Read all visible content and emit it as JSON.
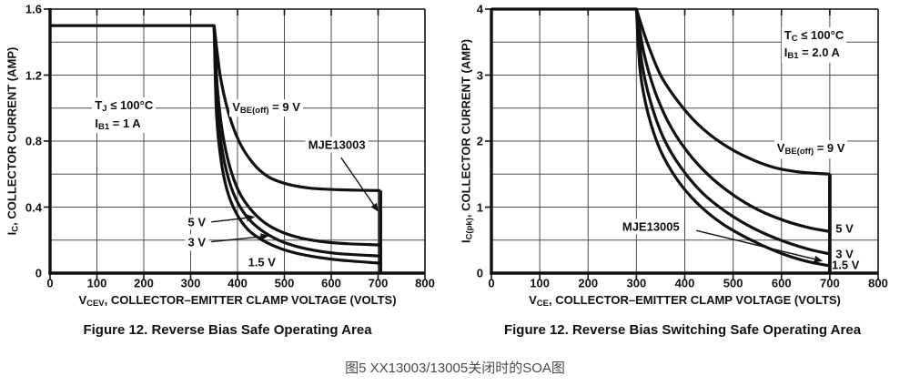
{
  "page": {
    "background": "#ffffff",
    "ink": "#111111",
    "grid": "#4d4d4d",
    "caption_color": "#4a4a4a"
  },
  "caption": "图5 XX13003/13005关闭时的SOA图",
  "chart_data": [
    {
      "type": "line",
      "device": "MJE13003",
      "title": "Figure 12. Reverse Bias Safe Operating Area",
      "xlabel_parts": [
        {
          "t": "V"
        },
        {
          "t": "CEV",
          "sub": true
        },
        {
          "t": ", COLLECTOR–EMITTER CLAMP VOLTAGE (VOLTS)"
        }
      ],
      "ylabel_parts": [
        {
          "t": "I"
        },
        {
          "t": "C",
          "sub": true
        },
        {
          "t": ", COLLECTOR CURRENT (AMP)"
        }
      ],
      "xlim": [
        0,
        800
      ],
      "ylim": [
        0,
        1.6
      ],
      "xticks": [
        0,
        100,
        200,
        300,
        400,
        500,
        600,
        700,
        800
      ],
      "yticks": [
        {
          "v": 0,
          "t": "0"
        },
        {
          "v": 0.4,
          "t": "0.4"
        },
        {
          "v": 0.8,
          "t": "0.8"
        },
        {
          "v": 1.2,
          "t": "1.2"
        },
        {
          "v": 1.6,
          "t": "1.6"
        }
      ],
      "xgrid_step": 100,
      "ygrid_step": 0.2,
      "grid": true,
      "legend": "inline-annotations",
      "series": [
        {
          "name": "VBE(off) = 9 V",
          "corner": 1,
          "points": [
            [
              0,
              1.5
            ],
            [
              350,
              1.5
            ],
            [
              363,
              1.2
            ],
            [
              380,
              0.98
            ],
            [
              403,
              0.8
            ],
            [
              432,
              0.67
            ],
            [
              465,
              0.585
            ],
            [
              505,
              0.54
            ],
            [
              555,
              0.515
            ],
            [
              620,
              0.505
            ],
            [
              705,
              0.5
            ]
          ]
        },
        {
          "name": "VBE(off) = 5 V",
          "corner": 0,
          "points": [
            [
              350,
              1.5
            ],
            [
              357,
              1.12
            ],
            [
              368,
              0.85
            ],
            [
              383,
              0.65
            ],
            [
              402,
              0.5
            ],
            [
              427,
              0.39
            ],
            [
              458,
              0.305
            ],
            [
              498,
              0.245
            ],
            [
              548,
              0.205
            ],
            [
              612,
              0.182
            ],
            [
              705,
              0.17
            ]
          ]
        },
        {
          "name": "VBE(off) = 3 V",
          "corner": 0,
          "points": [
            [
              350,
              1.5
            ],
            [
              356,
              1.05
            ],
            [
              366,
              0.77
            ],
            [
              381,
              0.57
            ],
            [
              400,
              0.43
            ],
            [
              425,
              0.325
            ],
            [
              456,
              0.25
            ],
            [
              496,
              0.19
            ],
            [
              546,
              0.148
            ],
            [
              610,
              0.12
            ],
            [
              705,
              0.103
            ]
          ]
        },
        {
          "name": "VBE(off) = 1.5 V",
          "corner": 0,
          "points": [
            [
              350,
              1.5
            ],
            [
              355,
              0.98
            ],
            [
              364,
              0.7
            ],
            [
              378,
              0.5
            ],
            [
              397,
              0.365
            ],
            [
              422,
              0.265
            ],
            [
              453,
              0.2
            ],
            [
              493,
              0.148
            ],
            [
              543,
              0.11
            ],
            [
              608,
              0.082
            ],
            [
              705,
              0.06
            ]
          ]
        }
      ],
      "cutoff": {
        "x": 705,
        "y_top": 0.5
      },
      "annotations": [
        {
          "id": "conditions",
          "anchor": "tl",
          "bg": true,
          "x": 90,
          "y": 1.065,
          "lines": [
            [
              {
                "t": "T"
              },
              {
                "t": "J",
                "sub": true
              },
              {
                "t": " ≤ 100°C"
              }
            ],
            [
              {
                "t": "I"
              },
              {
                "t": "B1",
                "sub": true
              },
              {
                "t": " = 1 A"
              }
            ]
          ]
        },
        {
          "id": "vbe-off-label",
          "anchor": "lm",
          "bg": true,
          "x": 383,
          "y": 1.0,
          "lines": [
            [
              {
                "t": "V"
              },
              {
                "t": "BE(off)",
                "sub": true
              },
              {
                "t": " = 9 V"
              }
            ]
          ]
        },
        {
          "id": "label-5v",
          "anchor": "rm",
          "bg": true,
          "x": 338,
          "y": 0.31,
          "lines": [
            [
              {
                "t": "5 V"
              }
            ]
          ]
        },
        {
          "id": "label-3v",
          "anchor": "rm",
          "bg": true,
          "x": 338,
          "y": 0.185,
          "lines": [
            [
              {
                "t": "3 V"
              }
            ]
          ]
        },
        {
          "id": "label-1-5v",
          "anchor": "cm",
          "bg": true,
          "x": 452,
          "y": 0.068,
          "lines": [
            [
              {
                "t": "1.5 V"
              }
            ]
          ]
        },
        {
          "id": "device-label",
          "anchor": "cm",
          "bg": true,
          "x": 612,
          "y": 0.78,
          "lines": [
            [
              {
                "t": "MJE13003"
              }
            ]
          ]
        }
      ],
      "arrows": [
        {
          "from": [
            344,
            0.31
          ],
          "to": [
            436,
            0.34
          ]
        },
        {
          "from": [
            344,
            0.19
          ],
          "to": [
            466,
            0.225
          ]
        },
        {
          "from": [
            621,
            0.7
          ],
          "to": [
            700,
            0.375
          ]
        }
      ]
    },
    {
      "type": "line",
      "device": "MJE13005",
      "title": "Figure 12. Reverse Bias Switching Safe Operating Area",
      "xlabel_parts": [
        {
          "t": "V"
        },
        {
          "t": "CE",
          "sub": true
        },
        {
          "t": ", COLLECTOR–EMITTER CLAMP VOLTAGE (VOLTS)"
        }
      ],
      "ylabel_parts": [
        {
          "t": "I"
        },
        {
          "t": "C(pk)",
          "sub": true
        },
        {
          "t": ", COLLECTOR CURRENT (AMP)"
        }
      ],
      "xlim": [
        0,
        800
      ],
      "ylim": [
        0,
        4
      ],
      "xticks": [
        0,
        100,
        200,
        300,
        400,
        500,
        600,
        700,
        800
      ],
      "yticks": [
        {
          "v": 0,
          "t": "0"
        },
        {
          "v": 1,
          "t": "1"
        },
        {
          "v": 2,
          "t": "2"
        },
        {
          "v": 3,
          "t": "3"
        },
        {
          "v": 4,
          "t": "4"
        }
      ],
      "xgrid_step": 100,
      "ygrid_step": 0.5,
      "grid": true,
      "legend": "inline-annotations",
      "series": [
        {
          "name": "VBE(off) = 9 V",
          "corner": 1,
          "points": [
            [
              0,
              4
            ],
            [
              300,
              4
            ],
            [
              322,
              3.5
            ],
            [
              350,
              3.0
            ],
            [
              386,
              2.6
            ],
            [
              428,
              2.25
            ],
            [
              476,
              1.97
            ],
            [
              530,
              1.75
            ],
            [
              585,
              1.6
            ],
            [
              640,
              1.53
            ],
            [
              700,
              1.5
            ]
          ]
        },
        {
          "name": "VBE(off) = 5 V",
          "corner": 0,
          "points": [
            [
              300,
              4
            ],
            [
              315,
              3.35
            ],
            [
              336,
              2.8
            ],
            [
              365,
              2.3
            ],
            [
              402,
              1.87
            ],
            [
              447,
              1.5
            ],
            [
              499,
              1.19
            ],
            [
              554,
              0.95
            ],
            [
              608,
              0.79
            ],
            [
              656,
              0.69
            ],
            [
              700,
              0.63
            ]
          ]
        },
        {
          "name": "VBE(off) = 3 V",
          "corner": 0,
          "points": [
            [
              300,
              4
            ],
            [
              311,
              3.2
            ],
            [
              329,
              2.6
            ],
            [
              356,
              2.05
            ],
            [
              392,
              1.6
            ],
            [
              436,
              1.22
            ],
            [
              487,
              0.92
            ],
            [
              542,
              0.68
            ],
            [
              598,
              0.5
            ],
            [
              652,
              0.37
            ],
            [
              700,
              0.29
            ]
          ]
        },
        {
          "name": "VBE(off) = 1.5 V",
          "corner": 0,
          "points": [
            [
              300,
              4
            ],
            [
              308,
              3.05
            ],
            [
              324,
              2.42
            ],
            [
              349,
              1.87
            ],
            [
              384,
              1.42
            ],
            [
              427,
              1.05
            ],
            [
              477,
              0.75
            ],
            [
              532,
              0.52
            ],
            [
              589,
              0.33
            ],
            [
              646,
              0.19
            ],
            [
              700,
              0.11
            ]
          ]
        }
      ],
      "cutoff": {
        "x": 700,
        "y_top": 1.5
      },
      "annotations": [
        {
          "id": "conditions",
          "anchor": "tl",
          "bg": true,
          "x": 600,
          "y": 3.73,
          "lines": [
            [
              {
                "t": "T"
              },
              {
                "t": "C",
                "sub": true
              },
              {
                "t": " ≤ 100°C"
              }
            ],
            [
              {
                "t": "I"
              },
              {
                "t": "B1",
                "sub": true
              },
              {
                "t": " = 2.0 A"
              }
            ]
          ]
        },
        {
          "id": "vbe-off-label",
          "anchor": "lm",
          "bg": true,
          "x": 585,
          "y": 1.87,
          "lines": [
            [
              {
                "t": "V"
              },
              {
                "t": "BE(off)",
                "sub": true
              },
              {
                "t": " = 9 V"
              }
            ]
          ]
        },
        {
          "id": "device-label",
          "anchor": "cm",
          "bg": true,
          "x": 330,
          "y": 0.7,
          "lines": [
            [
              {
                "t": "MJE13005"
              }
            ]
          ]
        },
        {
          "id": "label-5v",
          "anchor": "lm",
          "bg": false,
          "x": 712,
          "y": 0.67,
          "lines": [
            [
              {
                "t": "5 V"
              }
            ]
          ]
        },
        {
          "id": "label-3v",
          "anchor": "lm",
          "bg": false,
          "x": 712,
          "y": 0.295,
          "lines": [
            [
              {
                "t": "3 V"
              }
            ]
          ]
        },
        {
          "id": "label-1-5v",
          "anchor": "lm",
          "bg": false,
          "x": 704,
          "y": 0.125,
          "lines": [
            [
              {
                "t": "1.5 V"
              }
            ]
          ]
        }
      ],
      "arrows": [
        {
          "from": [
            424,
            0.645
          ],
          "to": [
            684,
            0.185
          ]
        }
      ]
    }
  ]
}
